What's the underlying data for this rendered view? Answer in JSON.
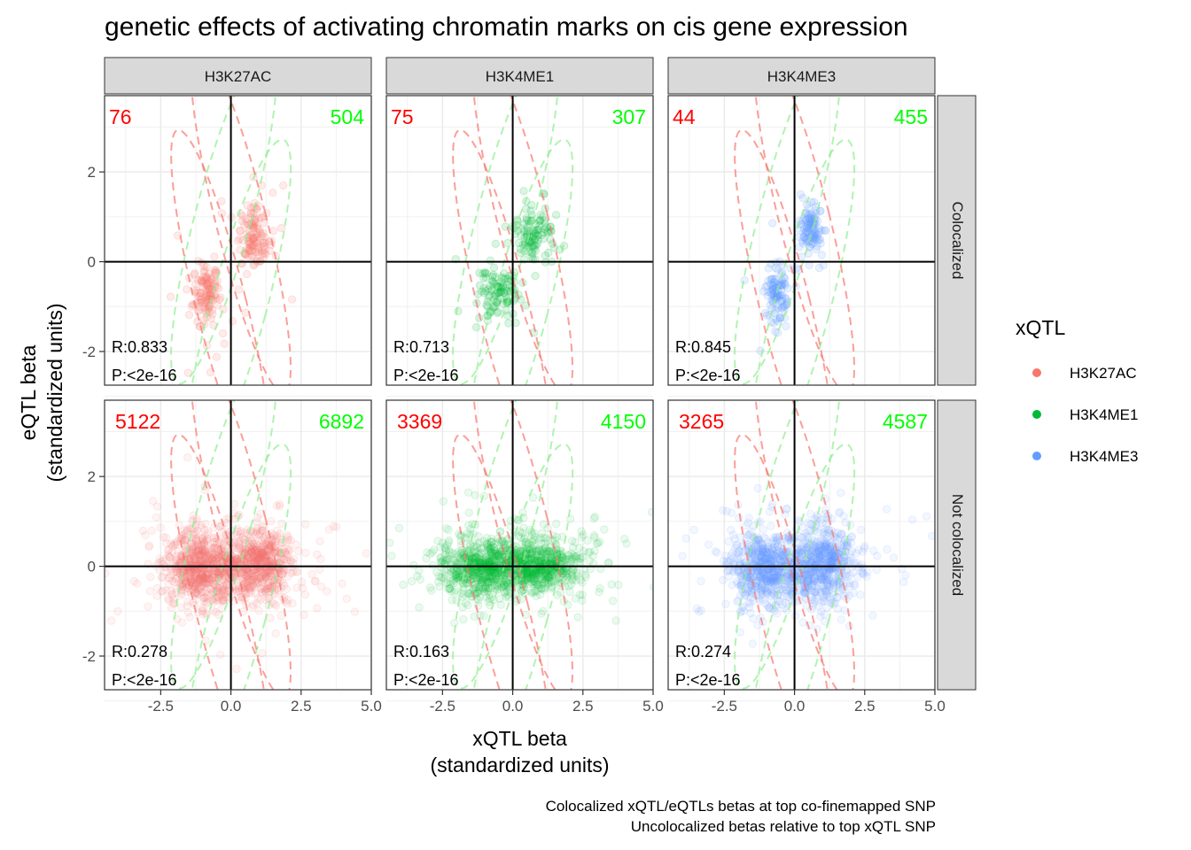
{
  "chart_data": {
    "type": "scatter",
    "title": "genetic effects of activating chromatin marks on cis gene expression",
    "xlabel": [
      "xQTL beta",
      "(standardized units)"
    ],
    "ylabel": [
      "eQTL beta",
      "(standardized units)"
    ],
    "caption": [
      "Colocalized xQTL/eQTLs betas at top co-finemapped SNP",
      "Uncolocalized betas relative to top xQTL SNP"
    ],
    "xlim": [
      -4.5,
      5.0
    ],
    "ylim": [
      -2.75,
      3.7
    ],
    "x_ticks": [
      -2.5,
      0.0,
      2.5,
      5.0
    ],
    "x_tick_labels": [
      "-2.5",
      "0.0",
      "2.5",
      "5.0"
    ],
    "y_ticks": [
      -2,
      0,
      2
    ],
    "y_tick_labels": [
      "-2",
      "0",
      "2"
    ],
    "grid": true,
    "legend": {
      "title": "xQTL",
      "position": "right",
      "entries": [
        {
          "label": "H3K27AC",
          "color": "#F8766D"
        },
        {
          "label": "H3K4ME1",
          "color": "#00BA38"
        },
        {
          "label": "H3K4ME3",
          "color": "#619CFF"
        }
      ]
    },
    "columns": [
      "H3K27AC",
      "H3K4ME1",
      "H3K4ME3"
    ],
    "rows": [
      "Colocalized",
      "Not colocalized"
    ],
    "count_colors": {
      "discordant": "#FF0000",
      "concordant": "#00FF00"
    },
    "ellipse_colors": {
      "discordant": "#F8766D",
      "concordant": "#90EE90"
    },
    "panels": [
      {
        "col": 0,
        "row": 0,
        "mark": "H3K27AC",
        "colocalized": "Colocalized",
        "discordant": "76",
        "concordant": "504",
        "r": "R:0.833",
        "p": "P:<2e-16",
        "cluster_pos": [
          0.85,
          0.55
        ],
        "cluster_neg": [
          -0.85,
          -0.7
        ],
        "spread": [
          0.25,
          0.35
        ],
        "n_points": 260
      },
      {
        "col": 1,
        "row": 0,
        "mark": "H3K4ME1",
        "colocalized": "Colocalized",
        "discordant": "75",
        "concordant": "307",
        "r": "R:0.713",
        "p": "P:<2e-16",
        "cluster_pos": [
          0.7,
          0.6
        ],
        "cluster_neg": [
          -0.5,
          -0.7
        ],
        "spread": [
          0.35,
          0.3
        ],
        "n_points": 220
      },
      {
        "col": 2,
        "row": 0,
        "mark": "H3K4ME3",
        "colocalized": "Colocalized",
        "discordant": "44",
        "concordant": "455",
        "r": "R:0.845",
        "p": "P:<2e-16",
        "cluster_pos": [
          0.6,
          0.75
        ],
        "cluster_neg": [
          -0.65,
          -0.7
        ],
        "spread": [
          0.2,
          0.3
        ],
        "n_points": 220
      },
      {
        "col": 0,
        "row": 1,
        "mark": "H3K27AC",
        "colocalized": "Not colocalized",
        "discordant": "5122",
        "concordant": "6892",
        "r": "R:0.278",
        "p": "P:<2e-16",
        "cluster_pos": [
          0.9,
          0.05
        ],
        "cluster_neg": [
          -1.1,
          -0.05
        ],
        "spread": [
          0.6,
          0.4
        ],
        "n_points": 1400
      },
      {
        "col": 1,
        "row": 1,
        "mark": "H3K4ME1",
        "colocalized": "Not colocalized",
        "discordant": "3369",
        "concordant": "4150",
        "r": "R:0.163",
        "p": "P:<2e-16",
        "cluster_pos": [
          0.9,
          0.05
        ],
        "cluster_neg": [
          -1.1,
          -0.05
        ],
        "spread": [
          0.8,
          0.3
        ],
        "n_points": 1300
      },
      {
        "col": 2,
        "row": 1,
        "mark": "H3K4ME3",
        "colocalized": "Not colocalized",
        "discordant": "3265",
        "concordant": "4587",
        "r": "R:0.274",
        "p": "P:<2e-16",
        "cluster_pos": [
          1.0,
          0.05
        ],
        "cluster_neg": [
          -1.0,
          -0.05
        ],
        "spread": [
          0.6,
          0.4
        ],
        "n_points": 1300
      }
    ]
  }
}
